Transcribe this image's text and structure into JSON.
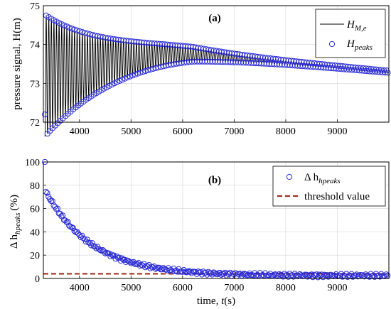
{
  "chart_data": [
    {
      "type": "line",
      "panel_label": "(a)",
      "ylabel": "pressure signal, H(m)",
      "xlim": [
        3300,
        10000
      ],
      "ylim": [
        72,
        75
      ],
      "xticks": [
        4000,
        5000,
        6000,
        7000,
        8000,
        9000
      ],
      "yticks": [
        72,
        73,
        74,
        75
      ],
      "grid": true,
      "legend_position": "top-right",
      "signal": {
        "start": 3330,
        "end": 9980,
        "period": 50,
        "mean_start": 73.2,
        "mean_end": 73.3,
        "mean_peak": 73.75,
        "mean_peak_at": 6200,
        "amp_start": 1.55,
        "decay": 1300
      },
      "series": [
        {
          "name_main": "H",
          "name_sub": "M,e",
          "kind": "line",
          "color": "#000000"
        },
        {
          "name_main": "H",
          "name_sub": "peaks",
          "kind": "markers",
          "color": "#2b2bd6"
        }
      ]
    },
    {
      "type": "scatter",
      "panel_label": "(b)",
      "ylabel_main": "Δ h",
      "ylabel_sub": "hpeaks",
      "ylabel_unit": "(%)",
      "xlabel": "time, t(s)",
      "xlim": [
        3300,
        10000
      ],
      "ylim": [
        0,
        100
      ],
      "xticks": [
        4000,
        5000,
        6000,
        7000,
        8000,
        9000
      ],
      "yticks": [
        0,
        20,
        40,
        60,
        80,
        100
      ],
      "grid": true,
      "legend_position": "top-right",
      "threshold": 4,
      "points": {
        "first_value": 100,
        "start": 3350,
        "end": 9980,
        "step": 25,
        "initial": 72,
        "decay": 900,
        "noise": 1.6
      },
      "series": [
        {
          "name_main": "Δ h",
          "name_sub": "hpeaks",
          "kind": "markers",
          "color": "#2b2bd6"
        },
        {
          "name": "threshold value",
          "kind": "dashed",
          "color": "#a0321e"
        }
      ]
    }
  ]
}
